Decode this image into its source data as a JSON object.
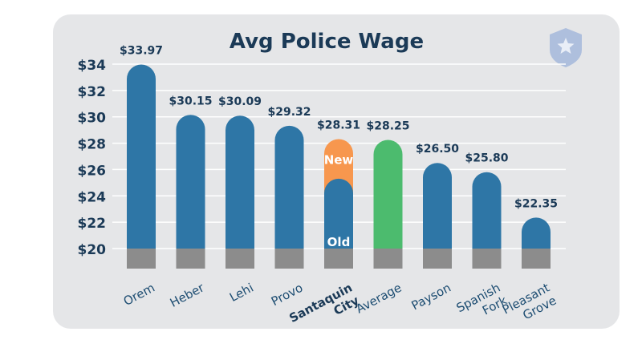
{
  "chart_data": {
    "type": "bar",
    "title": "Avg Police Wage",
    "categories": [
      "Orem",
      "Heber",
      "Lehi",
      "Provo",
      "Santaquin City",
      "Average",
      "Payson",
      "Spanish Fork",
      "Pleasant Grove"
    ],
    "category_lines": [
      [
        "Orem"
      ],
      [
        "Heber"
      ],
      [
        "Lehi"
      ],
      [
        "Provo"
      ],
      [
        "Santaquin",
        "City"
      ],
      [
        "Average"
      ],
      [
        "Payson"
      ],
      [
        "Spanish",
        "Fork"
      ],
      [
        "Pleasant",
        "Grove"
      ]
    ],
    "highlight_category": "Santaquin City",
    "values": [
      33.97,
      30.15,
      30.09,
      29.32,
      28.31,
      28.25,
      26.5,
      25.8,
      22.35
    ],
    "value_labels": [
      "$33.97",
      "$30.15",
      "$30.09",
      "$29.32",
      "$28.31",
      "$28.25",
      "$26.50",
      "$25.80",
      "$22.35"
    ],
    "santaquin_old_value": 25.3,
    "santaquin_segments": {
      "new_label": "New",
      "old_label": "Old"
    },
    "y_ticks": [
      20,
      22,
      24,
      26,
      28,
      30,
      32,
      34
    ],
    "y_tick_labels": [
      "$20",
      "$22",
      "$24",
      "$26",
      "$28",
      "$30",
      "$32",
      "$34"
    ],
    "ylim": [
      20,
      34
    ],
    "grid": true,
    "legend": "none",
    "colors": {
      "bar": "#2e76a6",
      "average": "#4cbb6e",
      "new_segment": "#f7974e",
      "base": "#8c8c8c",
      "title": "#1b3a57",
      "value_label": "#1b3a57",
      "axis_label": "#1b3a57",
      "category_label": "#1d4d72",
      "panel": "#e5e6e8",
      "badge": "#aebfdd"
    },
    "badge_icon": "police-badge-icon"
  }
}
